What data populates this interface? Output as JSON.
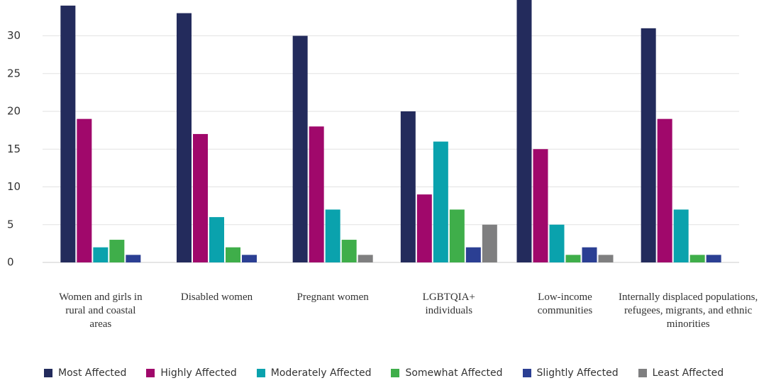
{
  "chart_data": {
    "type": "bar",
    "categories": [
      "Women and girls in rural and coastal areas",
      "Disabled women",
      "Pregnant women",
      "LGBTQIA+ individuals",
      "Low-income communities",
      "Internally displaced populations, refugees, migrants, and ethnic minorities"
    ],
    "series": [
      {
        "name": "Most Affected",
        "color": "#232b5c",
        "values": [
          34,
          33,
          30,
          20,
          35,
          31
        ]
      },
      {
        "name": "Highly Affected",
        "color": "#a0086b",
        "values": [
          19,
          17,
          18,
          9,
          15,
          19
        ]
      },
      {
        "name": "Moderately Affected",
        "color": "#0aa2ad",
        "values": [
          2,
          6,
          7,
          16,
          5,
          7
        ]
      },
      {
        "name": "Somewhat Affected",
        "color": "#3fae4a",
        "values": [
          3,
          2,
          3,
          7,
          1,
          1
        ]
      },
      {
        "name": "Slightly Affected",
        "color": "#2b3f93",
        "values": [
          1,
          1,
          null,
          2,
          2,
          1
        ]
      },
      {
        "name": "Least Affected",
        "color": "#7f7f80",
        "values": [
          null,
          null,
          1,
          5,
          1,
          null
        ]
      }
    ],
    "ylim": [
      0,
      35
    ],
    "yticks": [
      0,
      5,
      10,
      15,
      20,
      25,
      30
    ],
    "grid": true,
    "legend": "bottom"
  }
}
